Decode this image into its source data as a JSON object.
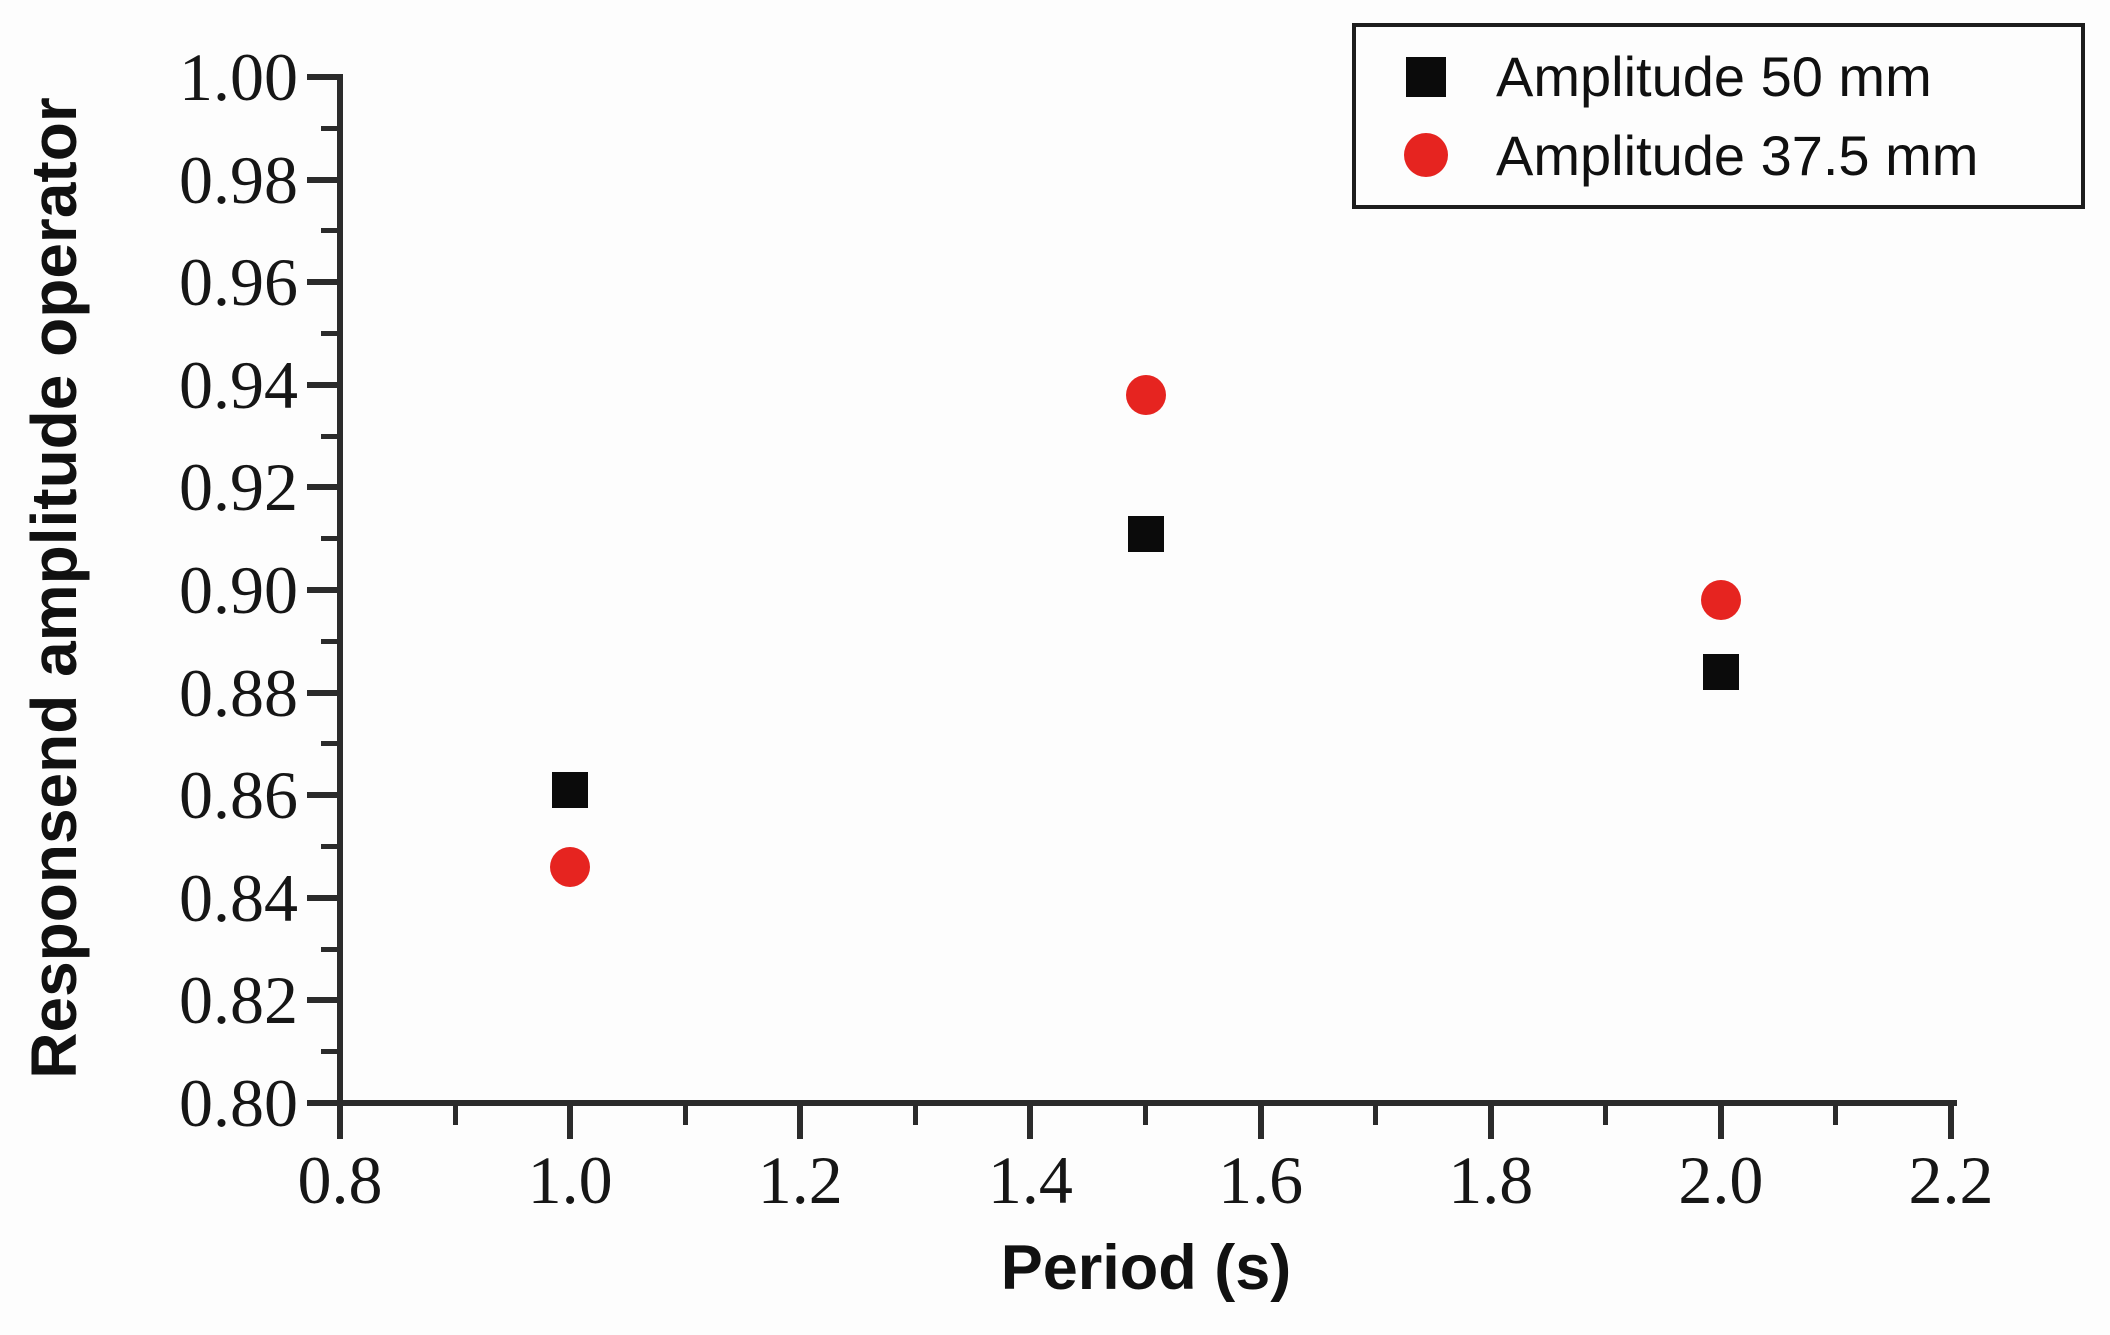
{
  "chart_data": {
    "type": "scatter",
    "title": "",
    "xlabel": "Period (s)",
    "ylabel": "Responsend amplitude operator",
    "xlim": [
      0.8,
      2.2
    ],
    "ylim": [
      0.8,
      1.0
    ],
    "x_major_step": 0.2,
    "x_minor_step": 0.1,
    "y_major_step": 0.02,
    "y_minor_step": 0.01,
    "grid": false,
    "legend_position": "top-right",
    "x_tick_labels": [
      "0.8",
      "1.0",
      "1.2",
      "1.4",
      "1.6",
      "1.8",
      "2.0",
      "2.2"
    ],
    "y_tick_labels": [
      "0.80",
      "0.82",
      "0.84",
      "0.86",
      "0.88",
      "0.90",
      "0.92",
      "0.94",
      "0.96",
      "0.98",
      "1.00"
    ],
    "x": [
      1.0,
      1.5,
      2.0
    ],
    "series": [
      {
        "name": "Amplitude 50 mm",
        "marker": "square",
        "color": "#0b0b0b",
        "values": [
          0.861,
          0.911,
          0.884
        ]
      },
      {
        "name": "Amplitude 37.5 mm",
        "marker": "circle",
        "color": "#e62420",
        "values": [
          0.846,
          0.938,
          0.898
        ]
      }
    ]
  },
  "colors": {
    "background": "#fdfdfd",
    "axis": "#2b2b2b",
    "tick_text": "#161616",
    "title_text": "#111111",
    "legend_border": "#1d1d1d",
    "series_50mm": "#0b0b0b",
    "series_37_5mm": "#e62420"
  }
}
